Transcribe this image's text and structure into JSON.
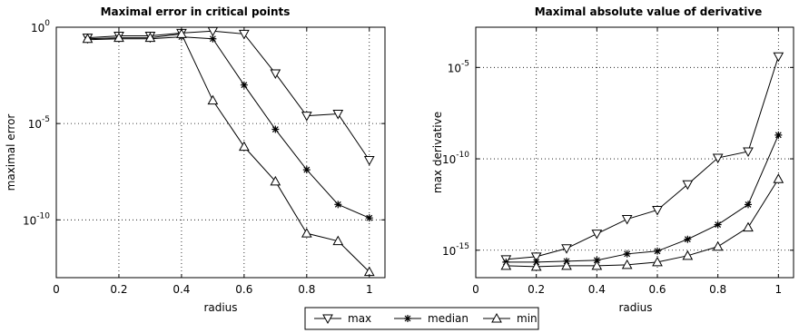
{
  "chart_data": [
    {
      "type": "line",
      "title": "Maximal error in critical points",
      "xlabel": "radius",
      "ylabel": "maximal error",
      "xscale": "linear",
      "yscale": "log",
      "xlim": [
        0,
        1.05
      ],
      "ylim_exp": [
        -13,
        0
      ],
      "xticks": [
        "0",
        "0.2",
        "0.4",
        "0.6",
        "0.8",
        "1"
      ],
      "yticks": [
        {
          "base": "10",
          "exp": "0",
          "value_exp": 0
        },
        {
          "base": "10",
          "exp": "-5",
          "value_exp": -5
        },
        {
          "base": "10",
          "exp": "-10",
          "value_exp": -10
        }
      ],
      "grid": true,
      "x": [
        0.1,
        0.2,
        0.3,
        0.4,
        0.5,
        0.6,
        0.7,
        0.8,
        0.9,
        1.0
      ],
      "series": [
        {
          "name": "max",
          "marker": "triangle-down",
          "log10_values": [
            -0.55,
            -0.45,
            -0.45,
            -0.3,
            -0.2,
            -0.35,
            -2.4,
            -4.6,
            -4.5,
            -6.9
          ]
        },
        {
          "name": "median",
          "marker": "asterisk",
          "log10_values": [
            -0.65,
            -0.6,
            -0.6,
            -0.5,
            -0.6,
            -3.0,
            -5.3,
            -7.4,
            -9.2,
            -9.9
          ]
        },
        {
          "name": "min",
          "marker": "triangle-up",
          "log10_values": [
            -0.6,
            -0.55,
            -0.55,
            -0.35,
            -3.8,
            -6.2,
            -8.0,
            -10.7,
            -11.1,
            -12.7
          ]
        }
      ]
    },
    {
      "type": "line",
      "title": "Maximal absolute value of derivative",
      "xlabel": "radius",
      "ylabel": "max derivative",
      "xscale": "linear",
      "yscale": "log",
      "xlim": [
        0,
        1.05
      ],
      "ylim_exp": [
        -16.5,
        -2.8
      ],
      "xticks": [
        "0",
        "0.2",
        "0.4",
        "0.6",
        "0.8",
        "1"
      ],
      "yticks": [
        {
          "base": "10",
          "exp": "-5",
          "value_exp": -5
        },
        {
          "base": "10",
          "exp": "-10",
          "value_exp": -10
        },
        {
          "base": "10",
          "exp": "-15",
          "value_exp": -15
        }
      ],
      "grid": true,
      "x": [
        0.1,
        0.2,
        0.3,
        0.4,
        0.5,
        0.6,
        0.7,
        0.8,
        0.9,
        1.0
      ],
      "series": [
        {
          "name": "max",
          "marker": "triangle-down",
          "log10_values": [
            -15.5,
            -15.35,
            -14.9,
            -14.1,
            -13.3,
            -12.8,
            -11.4,
            -9.95,
            -9.6,
            -4.4
          ]
        },
        {
          "name": "median",
          "marker": "asterisk",
          "log10_values": [
            -15.65,
            -15.65,
            -15.6,
            -15.55,
            -15.2,
            -15.05,
            -14.4,
            -13.6,
            -12.5,
            -8.7
          ]
        },
        {
          "name": "min",
          "marker": "triangle-up",
          "log10_values": [
            -15.85,
            -15.9,
            -15.85,
            -15.85,
            -15.8,
            -15.65,
            -15.3,
            -14.8,
            -13.75,
            -11.1
          ]
        }
      ]
    }
  ],
  "legend": {
    "placement": "bottom-center",
    "entries": [
      {
        "label": "max",
        "marker": "triangle-down"
      },
      {
        "label": "median",
        "marker": "asterisk"
      },
      {
        "label": "min",
        "marker": "triangle-up"
      }
    ]
  }
}
